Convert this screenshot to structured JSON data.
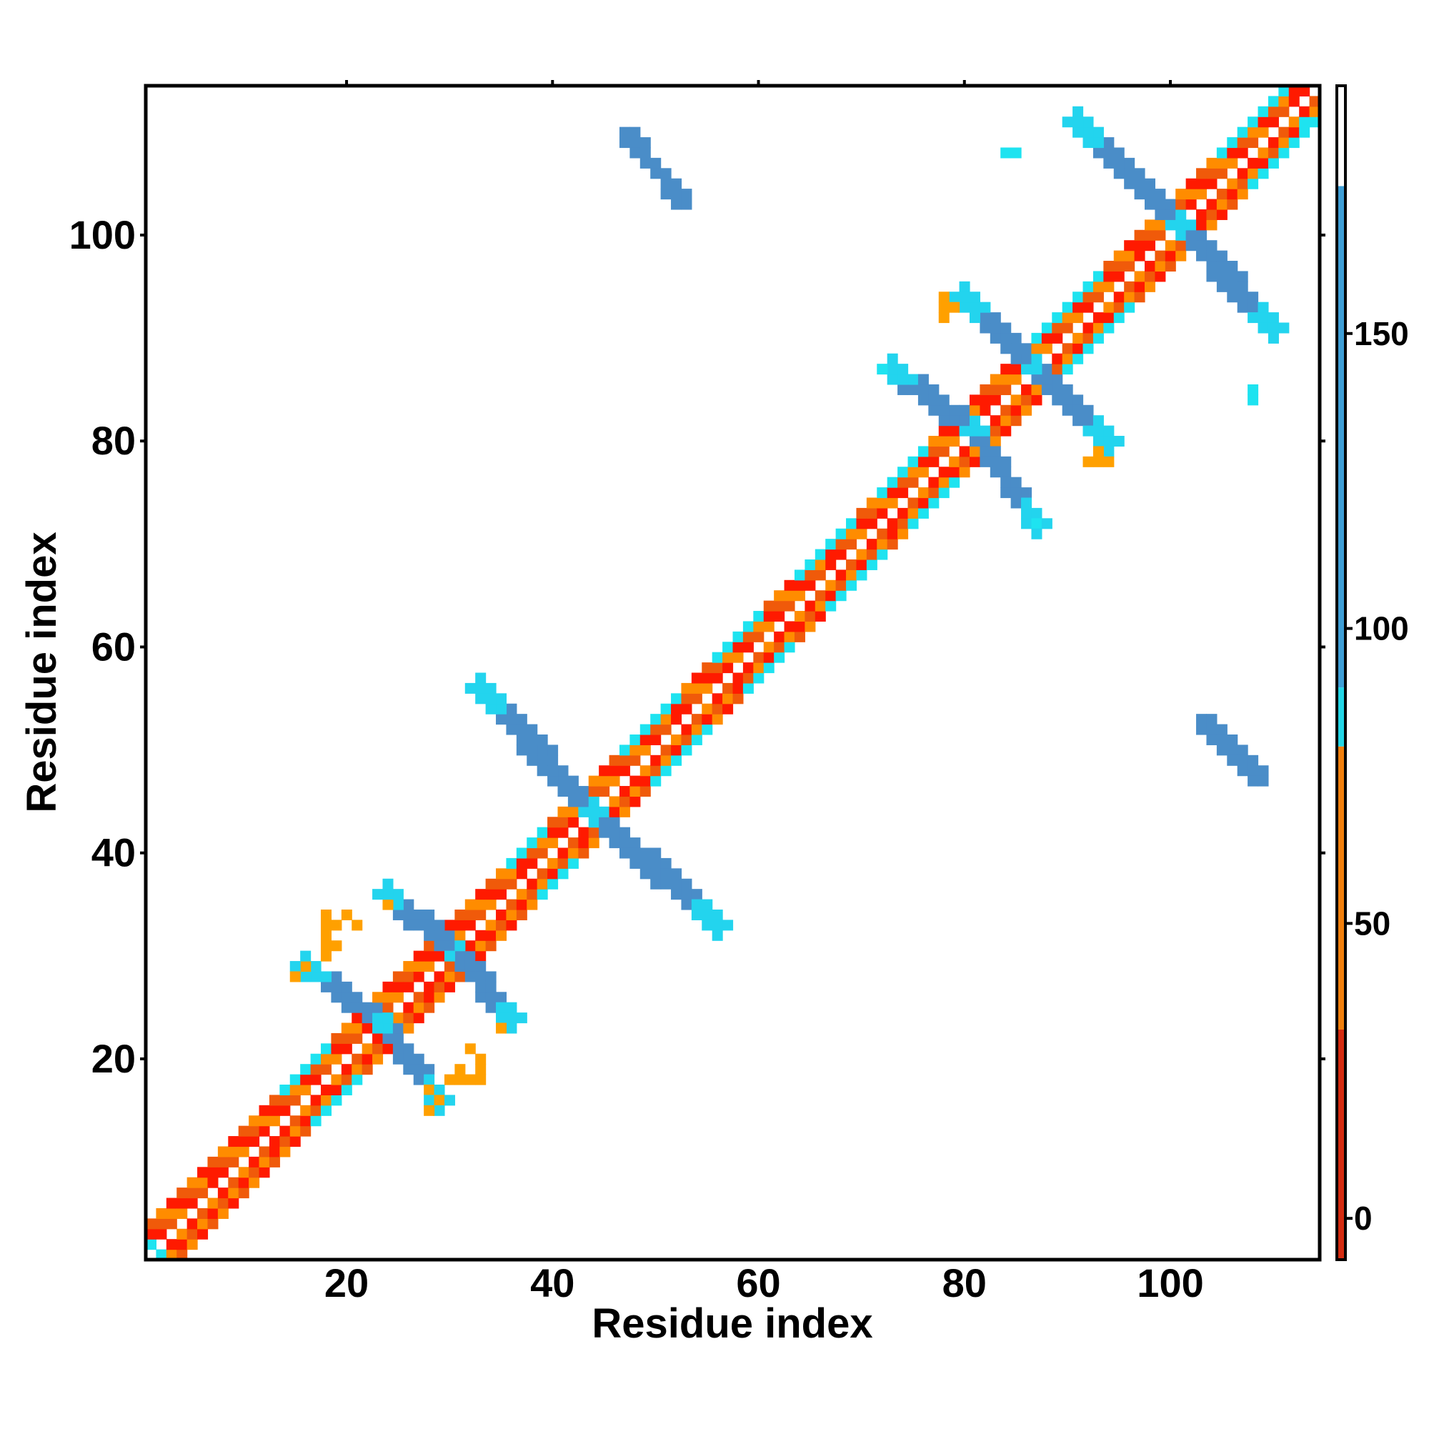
{
  "chart_data": {
    "type": "heatmap",
    "title": "",
    "xlabel": "Residue index",
    "ylabel": "Residue index",
    "xlim": [
      1,
      114
    ],
    "ylim": [
      1,
      114
    ],
    "x_ticks": [
      20,
      40,
      60,
      80,
      100
    ],
    "y_ticks": [
      20,
      40,
      60,
      80,
      100
    ],
    "colorbar": {
      "ticks": [
        0,
        50,
        100,
        150
      ],
      "range": [
        -7,
        192
      ],
      "bands": [
        {
          "from": -7,
          "to": 32,
          "color": "#d42b10"
        },
        {
          "from": 32,
          "to": 80,
          "color": "#f07f0c"
        },
        {
          "from": 80,
          "to": 90,
          "color": "#22d6e6"
        },
        {
          "from": 90,
          "to": 175,
          "color": "#3e9ed6"
        },
        {
          "from": 175,
          "to": 192,
          "color": "#ffffff"
        }
      ]
    },
    "diagonal_band": {
      "from": 1,
      "to": 114,
      "half_width": 3,
      "colors": [
        "#ff1a00",
        "#f05a0a",
        "#ff8c00"
      ],
      "helix_segments": [
        [
          14,
          21
        ],
        [
          36,
          42
        ],
        [
          47,
          55
        ],
        [
          56,
          63
        ],
        [
          64,
          72
        ],
        [
          72,
          79
        ],
        [
          85,
          96
        ],
        [
          105,
          114
        ]
      ],
      "helix_color": "#1ee3f0"
    },
    "contact_segments": [
      {
        "x1": 44,
        "y1": 44,
        "x2": 33,
        "y2": 56,
        "width": 2.2,
        "color": "#4a8dc8",
        "end_color": "#23d4ee"
      },
      {
        "x1": 44,
        "y1": 44,
        "x2": 56,
        "y2": 33,
        "width": 2.2,
        "color": "#4a8dc8",
        "end_color": "#23d4ee"
      },
      {
        "x1": 23,
        "y1": 24,
        "x2": 16,
        "y2": 29,
        "width": 2.0,
        "color": "#4a8dc8",
        "end_color": "#23d4ee"
      },
      {
        "x1": 24,
        "y1": 23,
        "x2": 29,
        "y2": 16,
        "width": 2.0,
        "color": "#4a8dc8",
        "end_color": "#23d4ee"
      },
      {
        "x1": 30,
        "y1": 31,
        "x2": 24,
        "y2": 36,
        "width": 2.0,
        "color": "#4a8dc8",
        "end_color": "#23d4ee"
      },
      {
        "x1": 31,
        "y1": 30,
        "x2": 36,
        "y2": 24,
        "width": 2.0,
        "color": "#4a8dc8",
        "end_color": "#23d4ee"
      },
      {
        "x1": 87,
        "y1": 87,
        "x2": 80,
        "y2": 94,
        "width": 2.0,
        "color": "#4a8dc8",
        "end_color": "#23d4ee"
      },
      {
        "x1": 87,
        "y1": 87,
        "x2": 94,
        "y2": 80,
        "width": 2.0,
        "color": "#4a8dc8",
        "end_color": "#23d4ee"
      },
      {
        "x1": 81,
        "y1": 81,
        "x2": 73,
        "y2": 87,
        "width": 2.0,
        "color": "#4a8dc8",
        "end_color": "#23d4ee"
      },
      {
        "x1": 81,
        "y1": 81,
        "x2": 87,
        "y2": 72,
        "width": 2.0,
        "color": "#4a8dc8",
        "end_color": "#23d4ee"
      },
      {
        "x1": 101,
        "y1": 101,
        "x2": 91,
        "y2": 111,
        "width": 2.2,
        "color": "#4a8dc8",
        "end_color": "#23d4ee"
      },
      {
        "x1": 101,
        "y1": 101,
        "x2": 110,
        "y2": 91,
        "width": 2.2,
        "color": "#4a8dc8",
        "end_color": "#23d4ee"
      },
      {
        "x1": 47,
        "y1": 110,
        "x2": 53,
        "y2": 103,
        "width": 1.8,
        "color": "#4a8dc8",
        "end_color": "#4a8dc8"
      },
      {
        "x1": 103,
        "y1": 53,
        "x2": 109,
        "y2": 47,
        "width": 1.8,
        "color": "#4a8dc8",
        "end_color": "#4a8dc8"
      }
    ],
    "scattered_cells": [
      {
        "x": 18,
        "y": 33,
        "color": "#ffa000"
      },
      {
        "x": 19,
        "y": 33,
        "color": "#ffa000"
      },
      {
        "x": 18,
        "y": 34,
        "color": "#ffa000"
      },
      {
        "x": 20,
        "y": 34,
        "color": "#ffa000"
      },
      {
        "x": 18,
        "y": 32,
        "color": "#ffa000"
      },
      {
        "x": 18,
        "y": 31,
        "color": "#ffa000"
      },
      {
        "x": 19,
        "y": 31,
        "color": "#ffa000"
      },
      {
        "x": 18,
        "y": 30,
        "color": "#ffa000"
      },
      {
        "x": 21,
        "y": 33,
        "color": "#ffa000"
      },
      {
        "x": 15,
        "y": 28,
        "color": "#ffa000"
      },
      {
        "x": 16,
        "y": 29,
        "color": "#ffa000"
      },
      {
        "x": 24,
        "y": 35,
        "color": "#ffa000"
      },
      {
        "x": 30,
        "y": 18,
        "color": "#ffa000"
      },
      {
        "x": 31,
        "y": 18,
        "color": "#ffa000"
      },
      {
        "x": 32,
        "y": 18,
        "color": "#ffa000"
      },
      {
        "x": 33,
        "y": 18,
        "color": "#ffa000"
      },
      {
        "x": 33,
        "y": 19,
        "color": "#ffa000"
      },
      {
        "x": 33,
        "y": 20,
        "color": "#ffa000"
      },
      {
        "x": 32,
        "y": 21,
        "color": "#ffa000"
      },
      {
        "x": 31,
        "y": 19,
        "color": "#ffa000"
      },
      {
        "x": 28,
        "y": 17,
        "color": "#ffa000"
      },
      {
        "x": 29,
        "y": 16,
        "color": "#ffa000"
      },
      {
        "x": 28,
        "y": 15,
        "color": "#ffa000"
      },
      {
        "x": 35,
        "y": 23,
        "color": "#ffa000"
      },
      {
        "x": 78,
        "y": 94,
        "color": "#ffa000"
      },
      {
        "x": 78,
        "y": 93,
        "color": "#ffa000"
      },
      {
        "x": 79,
        "y": 93,
        "color": "#ffa000"
      },
      {
        "x": 78,
        "y": 92,
        "color": "#ffa000"
      },
      {
        "x": 93,
        "y": 79,
        "color": "#ffa000"
      },
      {
        "x": 93,
        "y": 78,
        "color": "#ffa000"
      },
      {
        "x": 94,
        "y": 78,
        "color": "#ffa000"
      },
      {
        "x": 92,
        "y": 78,
        "color": "#ffa000"
      },
      {
        "x": 84,
        "y": 108,
        "color": "#1ee3f0"
      },
      {
        "x": 85,
        "y": 108,
        "color": "#1ee3f0"
      },
      {
        "x": 108,
        "y": 84,
        "color": "#1ee3f0"
      },
      {
        "x": 108,
        "y": 85,
        "color": "#1ee3f0"
      },
      {
        "x": 72,
        "y": 87,
        "color": "#1ee3f0"
      },
      {
        "x": 87,
        "y": 72,
        "color": "#1ee3f0"
      },
      {
        "x": 113,
        "y": 111,
        "color": "#1ee3f0"
      },
      {
        "x": 2,
        "y": 1,
        "color": "#1ee3f0"
      },
      {
        "x": 1,
        "y": 2,
        "color": "#1ee3f0"
      }
    ]
  }
}
